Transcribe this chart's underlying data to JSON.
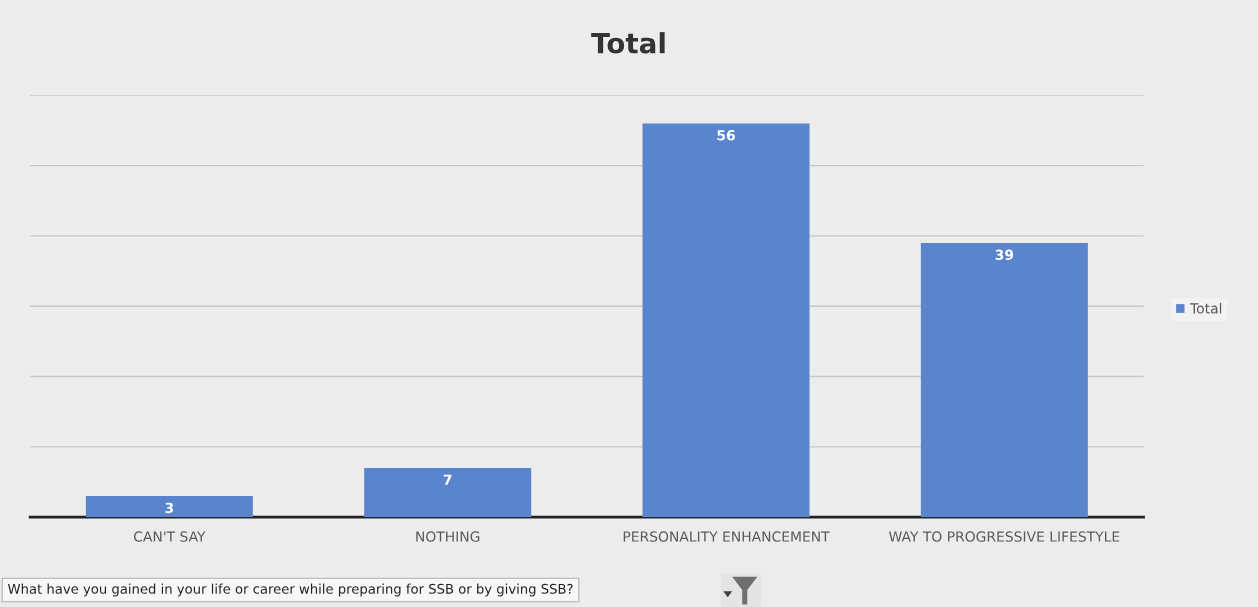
{
  "chart_data": {
    "type": "bar",
    "title": "Total",
    "categories": [
      "CAN'T SAY",
      "NOTHING",
      "PERSONALITY ENHANCEMENT",
      "WAY TO PROGRESSIVE LIFESTYLE"
    ],
    "series": [
      {
        "name": "Total",
        "color": "#5a84cc",
        "values": [
          3,
          7,
          56,
          39
        ]
      }
    ],
    "ylim": [
      0,
      60
    ],
    "yticks": [
      {
        "value": 0,
        "label": null
      },
      {
        "value": 10,
        "label": null
      },
      {
        "value": 20,
        "label": null
      },
      {
        "value": 30,
        "label": null
      },
      {
        "value": 40,
        "label": null
      },
      {
        "value": 50,
        "label": null
      },
      {
        "value": 60,
        "label": null
      }
    ],
    "tick_labels": "x",
    "grid": "y",
    "legend": "right",
    "data_labels": true,
    "annotations": [
      "What have you gained in your life or career while preparing for SSB or by giving SSB?"
    ]
  }
}
